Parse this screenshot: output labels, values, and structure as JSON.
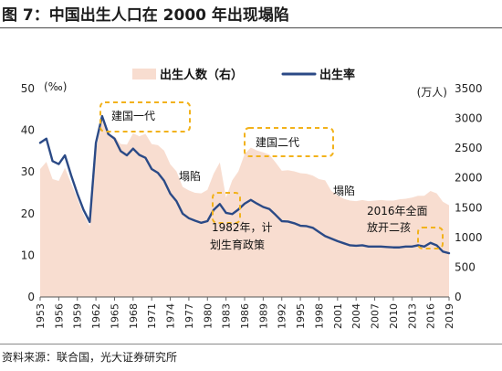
{
  "title": "图 7：中国出生人口在 2000 年出现塌陷",
  "source": "资料来源：联合国，光大证券研究所",
  "chart_data": {
    "type": "area+line",
    "title": "图 7：中国出生人口在 2000 年出现塌陷",
    "left_axis": {
      "unit": "(‰)",
      "ticks": [
        0,
        10,
        20,
        30,
        40,
        50
      ],
      "range": [
        0,
        50
      ]
    },
    "right_axis": {
      "unit": "(万人)",
      "ticks": [
        0,
        500,
        1000,
        1500,
        2000,
        2500,
        3000,
        3500
      ],
      "range": [
        0,
        3500
      ]
    },
    "x_axis": {
      "range": [
        1953,
        2019
      ],
      "tick_labels": [
        "1953",
        "1956",
        "1959",
        "1962",
        "1965",
        "1968",
        "1971",
        "1974",
        "1977",
        "1980",
        "1983",
        "1986",
        "1989",
        "1992",
        "1995",
        "1998",
        "2001",
        "2004",
        "2007",
        "2010",
        "2013",
        "2016",
        "2019"
      ],
      "tick_years": [
        1953,
        1956,
        1959,
        1962,
        1965,
        1968,
        1971,
        1974,
        1977,
        1980,
        1983,
        1986,
        1989,
        1992,
        1995,
        1998,
        2001,
        2004,
        2007,
        2010,
        2013,
        2016,
        2019
      ]
    },
    "legend": {
      "placement": "top-center",
      "items": [
        {
          "name": "出生人数（右）",
          "color": "#f8ddd0",
          "kind": "area"
        },
        {
          "name": "出生率",
          "color": "#2b4a86",
          "kind": "line"
        }
      ]
    },
    "series": [
      {
        "name": "出生人数（右）",
        "axis": "right",
        "color": "#f8ddd0",
        "x": [
          1953,
          1954,
          1955,
          1956,
          1957,
          1958,
          1959,
          1960,
          1961,
          1962,
          1963,
          1964,
          1965,
          1966,
          1967,
          1968,
          1969,
          1970,
          1971,
          1972,
          1973,
          1974,
          1975,
          1976,
          1977,
          1978,
          1979,
          1980,
          1981,
          1982,
          1983,
          1984,
          1985,
          1986,
          1987,
          1988,
          1989,
          1990,
          1991,
          1992,
          1993,
          1994,
          1995,
          1996,
          1997,
          1998,
          1999,
          2000,
          2001,
          2002,
          2003,
          2004,
          2005,
          2006,
          2007,
          2008,
          2009,
          2010,
          2011,
          2012,
          2013,
          2014,
          2015,
          2016,
          2017,
          2018,
          2019
        ],
        "values": [
          2150,
          2270,
          1980,
          1950,
          2170,
          1910,
          1650,
          1389,
          1190,
          2460,
          2960,
          2730,
          2700,
          2570,
          2560,
          2750,
          2700,
          2740,
          2570,
          2550,
          2460,
          2230,
          2110,
          1850,
          1790,
          1750,
          1740,
          1800,
          2070,
          2260,
          1670,
          1960,
          2110,
          2400,
          2510,
          2460,
          2430,
          2390,
          2260,
          2120,
          2130,
          2110,
          2080,
          2070,
          2040,
          1980,
          1960,
          1780,
          1710,
          1650,
          1620,
          1610,
          1630,
          1610,
          1620,
          1630,
          1620,
          1620,
          1640,
          1650,
          1670,
          1700,
          1700,
          1780,
          1740,
          1600,
          1540
        ]
      },
      {
        "name": "出生率",
        "axis": "left",
        "color": "#2b4a86",
        "x": [
          1953,
          1954,
          1955,
          1956,
          1957,
          1958,
          1959,
          1960,
          1961,
          1962,
          1963,
          1964,
          1965,
          1966,
          1967,
          1968,
          1969,
          1970,
          1971,
          1972,
          1973,
          1974,
          1975,
          1976,
          1977,
          1978,
          1979,
          1980,
          1981,
          1982,
          1983,
          1984,
          1985,
          1986,
          1987,
          1988,
          1989,
          1990,
          1991,
          1992,
          1993,
          1994,
          1995,
          1996,
          1997,
          1998,
          1999,
          2000,
          2001,
          2002,
          2003,
          2004,
          2005,
          2006,
          2007,
          2008,
          2009,
          2010,
          2011,
          2012,
          2013,
          2014,
          2015,
          2016,
          2017,
          2018,
          2019
        ],
        "values": [
          37.0,
          38.0,
          32.6,
          31.9,
          34.0,
          29.2,
          24.8,
          20.9,
          18.0,
          37.0,
          43.4,
          39.1,
          38.0,
          35.0,
          34.0,
          35.6,
          34.1,
          33.4,
          30.7,
          29.8,
          27.9,
          24.8,
          23.0,
          20.0,
          18.9,
          18.3,
          17.8,
          18.2,
          20.9,
          22.3,
          20.2,
          19.9,
          21.0,
          22.4,
          23.3,
          22.4,
          21.6,
          21.1,
          19.7,
          18.2,
          18.1,
          17.7,
          17.1,
          17.0,
          16.6,
          15.6,
          14.6,
          14.0,
          13.4,
          12.9,
          12.4,
          12.3,
          12.4,
          12.1,
          12.1,
          12.1,
          12.0,
          11.9,
          11.9,
          12.1,
          12.1,
          12.4,
          12.1,
          13.0,
          12.4,
          10.9,
          10.5
        ]
      }
    ],
    "annotations": [
      {
        "text": "建国一代"
      },
      {
        "text": "建国二代"
      },
      {
        "text": "塌陷"
      },
      {
        "text": "塌陷"
      },
      {
        "text_lines": [
          "1982年，计",
          "划生育政策"
        ]
      },
      {
        "text_lines": [
          "2016年全面",
          "放开二孩"
        ]
      }
    ]
  }
}
